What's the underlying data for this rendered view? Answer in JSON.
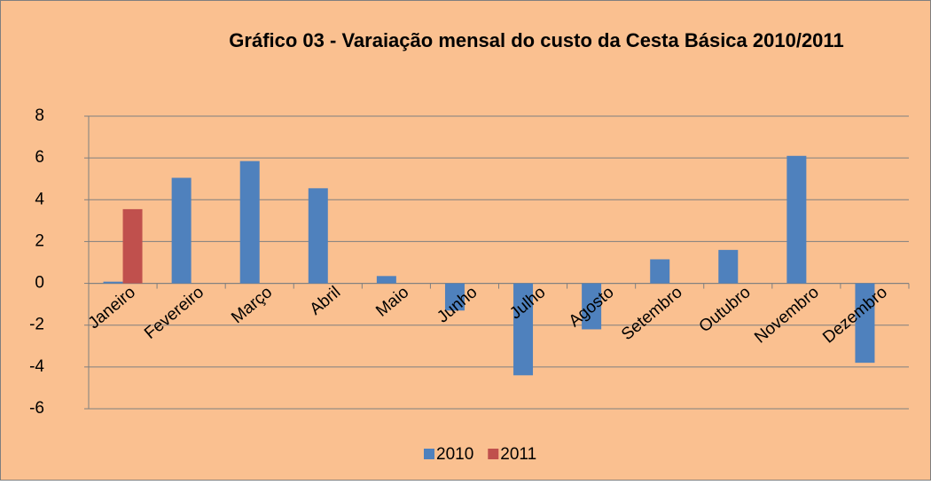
{
  "chart_data": {
    "type": "bar",
    "title": "Gráfico 03 - Varaiação mensal do custo da Cesta Básica 2010/2011",
    "categories": [
      "Janeiro",
      "Fevereiro",
      "Março",
      "Abril",
      "Maio",
      "Junho",
      "Julho",
      "Agosto",
      "Setembro",
      "Outubro",
      "Novembro",
      "Dezembro"
    ],
    "series": [
      {
        "name": "2010",
        "color": "#4f81bd",
        "values": [
          0.08,
          5.05,
          5.85,
          4.55,
          0.35,
          -1.3,
          -4.4,
          -2.2,
          1.15,
          1.6,
          6.1,
          -3.8
        ]
      },
      {
        "name": "2011",
        "color": "#c0504d",
        "values": [
          3.55,
          null,
          null,
          null,
          null,
          null,
          null,
          null,
          null,
          null,
          null,
          null
        ]
      }
    ],
    "ylim": [
      -6,
      8
    ],
    "yticks": [
      -6,
      -4,
      -2,
      0,
      2,
      4,
      6,
      8
    ],
    "grid": true,
    "legend": "bottom"
  }
}
